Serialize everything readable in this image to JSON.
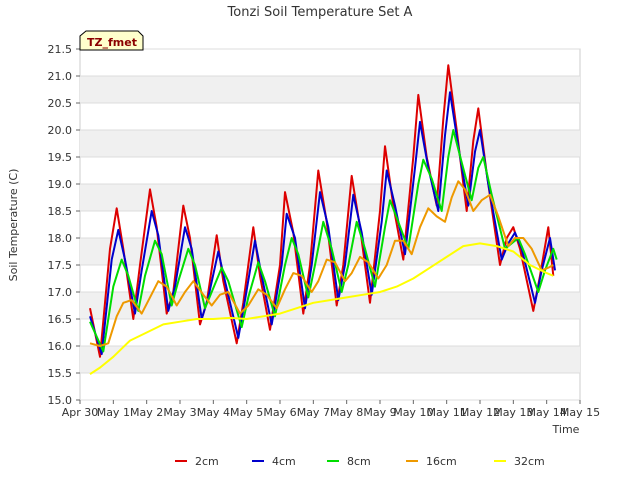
{
  "chart_data": {
    "type": "line",
    "title": "Tonzi Soil Temperature Set A",
    "xlabel": "Time",
    "ylabel": "Soil Temperature (C)",
    "site_tag": "TZ_fmet",
    "x_start": "Apr 30",
    "xlim": [
      0,
      15
    ],
    "ylim": [
      15.0,
      21.5
    ],
    "grid": "horizontal-bands",
    "legend_position": "bottom-center",
    "x_ticks": [
      {
        "x": 0,
        "label": "Apr 30"
      },
      {
        "x": 1,
        "label": "May 1"
      },
      {
        "x": 2,
        "label": "May 2"
      },
      {
        "x": 3,
        "label": "May 3"
      },
      {
        "x": 4,
        "label": "May 4"
      },
      {
        "x": 5,
        "label": "May 5"
      },
      {
        "x": 6,
        "label": "May 6"
      },
      {
        "x": 7,
        "label": "May 7"
      },
      {
        "x": 8,
        "label": "May 8"
      },
      {
        "x": 9,
        "label": "May 9"
      },
      {
        "x": 10,
        "label": "May 10"
      },
      {
        "x": 11,
        "label": "May 11"
      },
      {
        "x": 12,
        "label": "May 12"
      },
      {
        "x": 13,
        "label": "May 13"
      },
      {
        "x": 14,
        "label": "May 14"
      },
      {
        "x": 15,
        "label": "May 15"
      }
    ],
    "y_ticks": [
      "15.0",
      "15.5",
      "16.0",
      "16.5",
      "17.0",
      "17.5",
      "18.0",
      "18.5",
      "19.0",
      "19.5",
      "20.0",
      "20.5",
      "21.0",
      "21.5"
    ],
    "series": [
      {
        "name": "2cm",
        "color": "#dd0000",
        "points": [
          [
            0.3,
            16.7
          ],
          [
            0.6,
            15.8
          ],
          [
            0.9,
            17.8
          ],
          [
            1.1,
            18.55
          ],
          [
            1.3,
            17.8
          ],
          [
            1.6,
            16.5
          ],
          [
            1.8,
            17.5
          ],
          [
            2.1,
            18.9
          ],
          [
            2.3,
            18.2
          ],
          [
            2.6,
            16.6
          ],
          [
            2.8,
            17.0
          ],
          [
            3.1,
            18.6
          ],
          [
            3.3,
            18.0
          ],
          [
            3.6,
            16.4
          ],
          [
            3.8,
            16.8
          ],
          [
            4.1,
            18.05
          ],
          [
            4.3,
            17.2
          ],
          [
            4.7,
            16.05
          ],
          [
            4.9,
            16.8
          ],
          [
            5.2,
            18.2
          ],
          [
            5.4,
            17.3
          ],
          [
            5.7,
            16.3
          ],
          [
            6.0,
            17.5
          ],
          [
            6.15,
            18.85
          ],
          [
            6.4,
            18.1
          ],
          [
            6.7,
            16.6
          ],
          [
            6.9,
            17.5
          ],
          [
            7.15,
            19.25
          ],
          [
            7.4,
            18.3
          ],
          [
            7.7,
            16.75
          ],
          [
            7.9,
            17.5
          ],
          [
            8.15,
            19.15
          ],
          [
            8.4,
            18.2
          ],
          [
            8.7,
            16.8
          ],
          [
            9.0,
            18.5
          ],
          [
            9.15,
            19.7
          ],
          [
            9.4,
            18.6
          ],
          [
            9.7,
            17.6
          ],
          [
            10.0,
            19.5
          ],
          [
            10.15,
            20.65
          ],
          [
            10.4,
            19.5
          ],
          [
            10.7,
            18.6
          ],
          [
            10.9,
            20.2
          ],
          [
            11.05,
            21.2
          ],
          [
            11.3,
            20.0
          ],
          [
            11.6,
            18.5
          ],
          [
            11.8,
            19.8
          ],
          [
            11.95,
            20.4
          ],
          [
            12.2,
            19.2
          ],
          [
            12.6,
            17.5
          ],
          [
            12.8,
            18.0
          ],
          [
            13.0,
            18.2
          ],
          [
            13.2,
            17.8
          ],
          [
            13.6,
            16.65
          ],
          [
            13.8,
            17.3
          ],
          [
            14.05,
            18.2
          ],
          [
            14.2,
            17.3
          ]
        ]
      },
      {
        "name": "4cm",
        "color": "#0000cc",
        "points": [
          [
            0.3,
            16.55
          ],
          [
            0.65,
            15.85
          ],
          [
            0.95,
            17.6
          ],
          [
            1.15,
            18.15
          ],
          [
            1.35,
            17.6
          ],
          [
            1.65,
            16.6
          ],
          [
            1.85,
            17.4
          ],
          [
            2.15,
            18.5
          ],
          [
            2.35,
            18.05
          ],
          [
            2.65,
            16.65
          ],
          [
            2.85,
            17.1
          ],
          [
            3.15,
            18.2
          ],
          [
            3.35,
            17.8
          ],
          [
            3.65,
            16.5
          ],
          [
            3.85,
            16.9
          ],
          [
            4.15,
            17.75
          ],
          [
            4.35,
            17.2
          ],
          [
            4.75,
            16.15
          ],
          [
            4.95,
            16.85
          ],
          [
            5.25,
            17.95
          ],
          [
            5.45,
            17.3
          ],
          [
            5.75,
            16.4
          ],
          [
            6.05,
            17.5
          ],
          [
            6.2,
            18.45
          ],
          [
            6.45,
            18.0
          ],
          [
            6.75,
            16.7
          ],
          [
            6.95,
            17.5
          ],
          [
            7.2,
            18.85
          ],
          [
            7.45,
            18.2
          ],
          [
            7.75,
            16.85
          ],
          [
            7.95,
            17.5
          ],
          [
            8.2,
            18.8
          ],
          [
            8.45,
            18.1
          ],
          [
            8.75,
            16.95
          ],
          [
            9.05,
            18.3
          ],
          [
            9.2,
            19.25
          ],
          [
            9.45,
            18.6
          ],
          [
            9.75,
            17.7
          ],
          [
            10.05,
            19.3
          ],
          [
            10.2,
            20.15
          ],
          [
            10.45,
            19.3
          ],
          [
            10.75,
            18.5
          ],
          [
            10.95,
            19.9
          ],
          [
            11.1,
            20.7
          ],
          [
            11.35,
            19.7
          ],
          [
            11.65,
            18.6
          ],
          [
            11.85,
            19.6
          ],
          [
            12.0,
            20.0
          ],
          [
            12.25,
            19.0
          ],
          [
            12.65,
            17.6
          ],
          [
            12.85,
            17.9
          ],
          [
            13.05,
            18.1
          ],
          [
            13.25,
            17.8
          ],
          [
            13.65,
            16.8
          ],
          [
            13.85,
            17.4
          ],
          [
            14.1,
            18.0
          ],
          [
            14.25,
            17.4
          ]
        ]
      },
      {
        "name": "8cm",
        "color": "#00dd00",
        "points": [
          [
            0.3,
            16.45
          ],
          [
            0.7,
            15.9
          ],
          [
            1.0,
            17.1
          ],
          [
            1.25,
            17.6
          ],
          [
            1.45,
            17.3
          ],
          [
            1.75,
            16.65
          ],
          [
            1.95,
            17.3
          ],
          [
            2.25,
            17.95
          ],
          [
            2.45,
            17.7
          ],
          [
            2.75,
            16.75
          ],
          [
            2.95,
            17.2
          ],
          [
            3.25,
            17.8
          ],
          [
            3.45,
            17.5
          ],
          [
            3.75,
            16.7
          ],
          [
            3.95,
            17.0
          ],
          [
            4.25,
            17.45
          ],
          [
            4.45,
            17.2
          ],
          [
            4.85,
            16.35
          ],
          [
            5.05,
            16.9
          ],
          [
            5.35,
            17.55
          ],
          [
            5.55,
            17.2
          ],
          [
            5.85,
            16.55
          ],
          [
            6.15,
            17.5
          ],
          [
            6.35,
            18.0
          ],
          [
            6.55,
            17.7
          ],
          [
            6.85,
            16.9
          ],
          [
            7.05,
            17.5
          ],
          [
            7.3,
            18.3
          ],
          [
            7.55,
            17.8
          ],
          [
            7.85,
            17.0
          ],
          [
            8.05,
            17.5
          ],
          [
            8.3,
            18.3
          ],
          [
            8.55,
            17.8
          ],
          [
            8.85,
            17.1
          ],
          [
            9.15,
            18.2
          ],
          [
            9.3,
            18.7
          ],
          [
            9.55,
            18.3
          ],
          [
            9.85,
            17.8
          ],
          [
            10.15,
            19.0
          ],
          [
            10.3,
            19.45
          ],
          [
            10.55,
            19.1
          ],
          [
            10.85,
            18.5
          ],
          [
            11.05,
            19.5
          ],
          [
            11.2,
            20.0
          ],
          [
            11.45,
            19.4
          ],
          [
            11.75,
            18.7
          ],
          [
            11.95,
            19.3
          ],
          [
            12.1,
            19.5
          ],
          [
            12.35,
            18.8
          ],
          [
            12.75,
            17.8
          ],
          [
            12.95,
            17.9
          ],
          [
            13.15,
            18.0
          ],
          [
            13.35,
            17.7
          ],
          [
            13.75,
            17.0
          ],
          [
            13.95,
            17.4
          ],
          [
            14.2,
            17.8
          ],
          [
            14.3,
            17.6
          ]
        ]
      },
      {
        "name": "16cm",
        "color": "#ee9900",
        "points": [
          [
            0.3,
            16.05
          ],
          [
            0.6,
            16.0
          ],
          [
            0.85,
            16.05
          ],
          [
            1.1,
            16.55
          ],
          [
            1.3,
            16.8
          ],
          [
            1.55,
            16.85
          ],
          [
            1.85,
            16.6
          ],
          [
            2.1,
            16.9
          ],
          [
            2.35,
            17.2
          ],
          [
            2.6,
            17.1
          ],
          [
            2.9,
            16.75
          ],
          [
            3.15,
            17.0
          ],
          [
            3.4,
            17.2
          ],
          [
            3.7,
            16.95
          ],
          [
            3.95,
            16.75
          ],
          [
            4.2,
            16.95
          ],
          [
            4.45,
            17.0
          ],
          [
            4.8,
            16.6
          ],
          [
            5.05,
            16.75
          ],
          [
            5.35,
            17.05
          ],
          [
            5.6,
            16.95
          ],
          [
            5.9,
            16.7
          ],
          [
            6.15,
            17.05
          ],
          [
            6.4,
            17.35
          ],
          [
            6.65,
            17.3
          ],
          [
            6.95,
            17.0
          ],
          [
            7.15,
            17.2
          ],
          [
            7.4,
            17.6
          ],
          [
            7.65,
            17.55
          ],
          [
            7.95,
            17.2
          ],
          [
            8.15,
            17.35
          ],
          [
            8.4,
            17.65
          ],
          [
            8.65,
            17.55
          ],
          [
            8.95,
            17.25
          ],
          [
            9.2,
            17.5
          ],
          [
            9.45,
            17.95
          ],
          [
            9.7,
            17.95
          ],
          [
            9.95,
            17.7
          ],
          [
            10.2,
            18.2
          ],
          [
            10.45,
            18.55
          ],
          [
            10.7,
            18.4
          ],
          [
            10.95,
            18.3
          ],
          [
            11.15,
            18.75
          ],
          [
            11.35,
            19.05
          ],
          [
            11.55,
            18.9
          ],
          [
            11.8,
            18.5
          ],
          [
            12.05,
            18.7
          ],
          [
            12.3,
            18.8
          ],
          [
            12.55,
            18.4
          ],
          [
            12.85,
            17.85
          ],
          [
            13.05,
            18.0
          ],
          [
            13.3,
            18.0
          ],
          [
            13.55,
            17.8
          ],
          [
            13.85,
            17.4
          ],
          [
            14.05,
            17.45
          ],
          [
            14.2,
            17.5
          ]
        ]
      },
      {
        "name": "32cm",
        "color": "#ffff00",
        "points": [
          [
            0.3,
            15.48
          ],
          [
            0.6,
            15.6
          ],
          [
            1.0,
            15.8
          ],
          [
            1.5,
            16.1
          ],
          [
            2.0,
            16.25
          ],
          [
            2.5,
            16.4
          ],
          [
            3.0,
            16.45
          ],
          [
            3.5,
            16.5
          ],
          [
            4.0,
            16.5
          ],
          [
            4.5,
            16.52
          ],
          [
            5.0,
            16.5
          ],
          [
            5.5,
            16.55
          ],
          [
            6.0,
            16.6
          ],
          [
            6.5,
            16.7
          ],
          [
            7.0,
            16.8
          ],
          [
            7.5,
            16.85
          ],
          [
            8.0,
            16.9
          ],
          [
            8.5,
            16.95
          ],
          [
            9.0,
            17.0
          ],
          [
            9.5,
            17.1
          ],
          [
            10.0,
            17.25
          ],
          [
            10.5,
            17.45
          ],
          [
            11.0,
            17.65
          ],
          [
            11.5,
            17.85
          ],
          [
            12.0,
            17.9
          ],
          [
            12.5,
            17.85
          ],
          [
            13.0,
            17.75
          ],
          [
            13.5,
            17.5
          ],
          [
            14.0,
            17.35
          ],
          [
            14.2,
            17.3
          ]
        ]
      }
    ]
  }
}
